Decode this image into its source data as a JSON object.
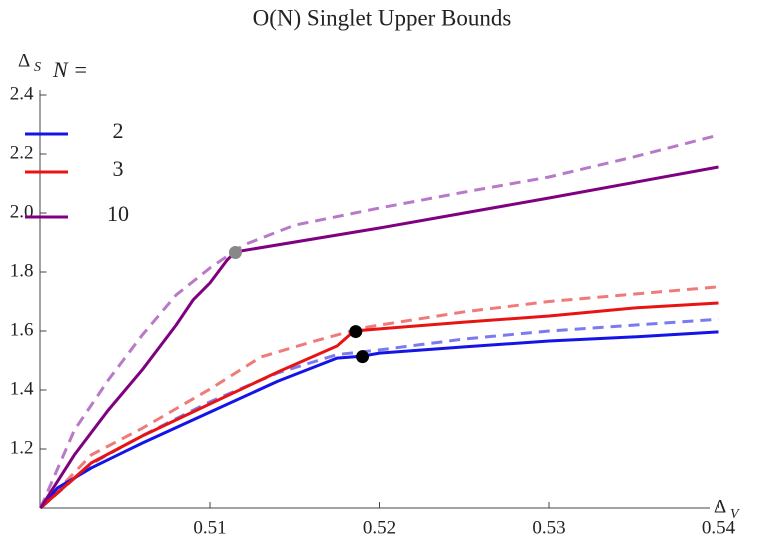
{
  "chart_data": {
    "type": "line",
    "title": "O(N) Singlet Upper Bounds",
    "xlabel": {
      "text": "Δ",
      "subscript": "V"
    },
    "ylabel": {
      "text": "Δ",
      "subscript": "S"
    },
    "legend_title": "N =",
    "legend": "top-left",
    "xlim": [
      0.5,
      0.54
    ],
    "ylim": [
      1.0,
      2.4
    ],
    "xticks": [
      0.51,
      0.52,
      0.53,
      0.54
    ],
    "yticks": [
      1.2,
      1.4,
      1.6,
      1.8,
      {
        "value": 2,
        "label": "2.0"
      },
      2.2,
      2.4
    ],
    "series": [
      {
        "name": "2",
        "color": "#1414e6",
        "x": [
          0.5,
          0.501,
          0.503,
          0.506,
          0.51,
          0.514,
          0.5175,
          0.519,
          0.52,
          0.525,
          0.53,
          0.535,
          0.54
        ],
        "values": [
          1.0,
          1.068,
          1.136,
          1.22,
          1.325,
          1.43,
          1.508,
          1.515,
          1.525,
          1.546,
          1.566,
          1.58,
          1.597
        ],
        "dashed_color": "#7b7bf0",
        "dashed_x": [
          0.5,
          0.503,
          0.506,
          0.51,
          0.514,
          0.5175,
          0.52,
          0.525,
          0.53,
          0.535,
          0.54
        ],
        "dashed_values": [
          1.0,
          1.15,
          1.245,
          1.36,
          1.458,
          1.52,
          1.536,
          1.573,
          1.6,
          1.62,
          1.64
        ]
      },
      {
        "name": "3",
        "color": "#e81414",
        "x": [
          0.5,
          0.503,
          0.506,
          0.51,
          0.514,
          0.5175,
          0.5185,
          0.52,
          0.525,
          0.53,
          0.535,
          0.54
        ],
        "values": [
          1.0,
          1.153,
          1.244,
          1.353,
          1.461,
          1.549,
          1.6,
          1.607,
          1.63,
          1.651,
          1.678,
          1.695
        ],
        "dashed_color": "#f07a7a",
        "dashed_x": [
          0.5,
          0.503,
          0.506,
          0.51,
          0.513,
          0.516,
          0.519,
          0.52,
          0.525,
          0.53,
          0.535,
          0.54
        ],
        "dashed_values": [
          1.0,
          1.18,
          1.27,
          1.403,
          1.512,
          1.563,
          1.61,
          1.62,
          1.665,
          1.7,
          1.725,
          1.75
        ]
      },
      {
        "name": "10",
        "color": "#800080",
        "x": [
          0.5,
          0.502,
          0.504,
          0.506,
          0.508,
          0.509,
          0.51,
          0.511,
          0.5115,
          0.52,
          0.53,
          0.54
        ],
        "values": [
          1.0,
          1.18,
          1.332,
          1.468,
          1.62,
          1.705,
          1.763,
          1.84,
          1.868,
          1.949,
          2.051,
          2.156
        ],
        "dashed_color": "#b87ac8",
        "dashed_x": [
          0.5,
          0.502,
          0.504,
          0.506,
          0.508,
          0.51,
          0.512,
          0.515,
          0.52,
          0.525,
          0.53,
          0.535,
          0.54
        ],
        "dashed_values": [
          1.0,
          1.264,
          1.434,
          1.586,
          1.722,
          1.814,
          1.892,
          1.959,
          2.017,
          2.071,
          2.122,
          2.19,
          2.264
        ]
      }
    ],
    "points": [
      {
        "x": 0.5115,
        "y": 1.866,
        "color": "#888888"
      },
      {
        "x": 0.5186,
        "y": 1.598,
        "color": "#000000"
      },
      {
        "x": 0.519,
        "y": 1.513,
        "color": "#000000"
      }
    ]
  }
}
